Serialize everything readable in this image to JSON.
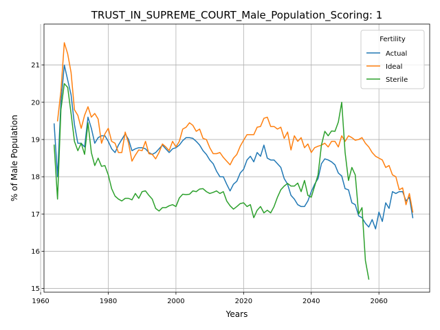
{
  "chart_data": {
    "type": "line",
    "title": "TRUST_IN_SUPREME_COURT_Male_Population_Scoring: 1",
    "xlabel": "Years",
    "ylabel": "% of Male Population",
    "xlim": [
      1961,
      2075
    ],
    "ylim": [
      14.9,
      22.1
    ],
    "xticks": [
      1960,
      1980,
      2000,
      2020,
      2040,
      2060
    ],
    "yticks": [
      15,
      16,
      17,
      18,
      19,
      20,
      21
    ],
    "grid": true,
    "legend": {
      "title": "Fertility",
      "placement": "top-right"
    },
    "series": [
      {
        "name": "Actual",
        "color": "#1f77b4",
        "points": [
          [
            1964,
            19.42
          ],
          [
            1965,
            18.0
          ],
          [
            1966,
            20.0
          ],
          [
            1967,
            21.0
          ],
          [
            1968,
            20.6
          ],
          [
            1969,
            20.2
          ],
          [
            1970,
            19.4
          ],
          [
            1971,
            18.9
          ],
          [
            1972,
            18.9
          ],
          [
            1973,
            18.8
          ],
          [
            1974,
            19.6
          ],
          [
            1975,
            19.3
          ],
          [
            1976,
            18.9
          ],
          [
            1977,
            19.05
          ],
          [
            1978,
            19.1
          ],
          [
            1979,
            19.1
          ],
          [
            1980,
            18.95
          ],
          [
            1981,
            18.75
          ],
          [
            1982,
            18.65
          ],
          [
            1983,
            18.85
          ],
          [
            1984,
            19.0
          ],
          [
            1985,
            19.15
          ],
          [
            1986,
            19.0
          ],
          [
            1987,
            18.7
          ],
          [
            1988,
            18.75
          ],
          [
            1989,
            18.78
          ],
          [
            1990,
            18.78
          ],
          [
            1991,
            18.75
          ],
          [
            1992,
            18.65
          ],
          [
            1993,
            18.6
          ],
          [
            1994,
            18.65
          ],
          [
            1995,
            18.75
          ],
          [
            1996,
            18.85
          ],
          [
            1997,
            18.75
          ],
          [
            1998,
            18.65
          ],
          [
            1999,
            18.75
          ],
          [
            2000,
            18.78
          ],
          [
            2001,
            18.85
          ],
          [
            2002,
            18.97
          ],
          [
            2003,
            19.05
          ],
          [
            2004,
            19.05
          ],
          [
            2005,
            19.03
          ],
          [
            2006,
            18.95
          ],
          [
            2007,
            18.85
          ],
          [
            2008,
            18.7
          ],
          [
            2009,
            18.6
          ],
          [
            2010,
            18.45
          ],
          [
            2011,
            18.35
          ],
          [
            2012,
            18.15
          ],
          [
            2013,
            18.0
          ],
          [
            2014,
            18.0
          ],
          [
            2015,
            17.8
          ],
          [
            2016,
            17.62
          ],
          [
            2017,
            17.8
          ],
          [
            2018,
            17.88
          ],
          [
            2019,
            18.1
          ],
          [
            2020,
            18.2
          ],
          [
            2021,
            18.45
          ],
          [
            2022,
            18.55
          ],
          [
            2023,
            18.4
          ],
          [
            2024,
            18.65
          ],
          [
            2025,
            18.55
          ],
          [
            2026,
            18.85
          ],
          [
            2027,
            18.5
          ],
          [
            2028,
            18.45
          ],
          [
            2029,
            18.45
          ],
          [
            2030,
            18.35
          ],
          [
            2031,
            18.25
          ],
          [
            2032,
            17.95
          ],
          [
            2033,
            17.8
          ],
          [
            2034,
            17.5
          ],
          [
            2035,
            17.4
          ],
          [
            2036,
            17.25
          ],
          [
            2037,
            17.2
          ],
          [
            2038,
            17.2
          ],
          [
            2039,
            17.35
          ],
          [
            2040,
            17.6
          ],
          [
            2041,
            17.8
          ],
          [
            2042,
            17.95
          ],
          [
            2043,
            18.35
          ],
          [
            2044,
            18.48
          ],
          [
            2045,
            18.45
          ],
          [
            2046,
            18.4
          ],
          [
            2047,
            18.32
          ],
          [
            2048,
            18.1
          ],
          [
            2049,
            18.02
          ],
          [
            2050,
            17.68
          ],
          [
            2051,
            17.65
          ],
          [
            2052,
            17.3
          ],
          [
            2053,
            17.25
          ],
          [
            2054,
            16.95
          ],
          [
            2055,
            16.9
          ],
          [
            2056,
            16.75
          ],
          [
            2057,
            16.65
          ],
          [
            2058,
            16.85
          ],
          [
            2059,
            16.6
          ],
          [
            2060,
            17.05
          ],
          [
            2061,
            16.8
          ],
          [
            2062,
            17.3
          ],
          [
            2063,
            17.15
          ],
          [
            2064,
            17.6
          ],
          [
            2065,
            17.55
          ],
          [
            2066,
            17.6
          ],
          [
            2067,
            17.6
          ],
          [
            2068,
            17.35
          ],
          [
            2069,
            17.45
          ],
          [
            2070,
            16.9
          ]
        ]
      },
      {
        "name": "Ideal",
        "color": "#ff7f0e",
        "points": [
          [
            1965,
            19.5
          ],
          [
            1966,
            20.3
          ],
          [
            1967,
            21.6
          ],
          [
            1968,
            21.3
          ],
          [
            1969,
            20.8
          ],
          [
            1970,
            19.8
          ],
          [
            1971,
            19.65
          ],
          [
            1972,
            19.3
          ],
          [
            1973,
            19.65
          ],
          [
            1974,
            19.88
          ],
          [
            1975,
            19.6
          ],
          [
            1976,
            19.7
          ],
          [
            1977,
            19.55
          ],
          [
            1978,
            18.9
          ],
          [
            1979,
            19.15
          ],
          [
            1980,
            19.3
          ],
          [
            1981,
            18.95
          ],
          [
            1982,
            18.9
          ],
          [
            1983,
            18.65
          ],
          [
            1984,
            18.65
          ],
          [
            1985,
            19.2
          ],
          [
            1986,
            18.9
          ],
          [
            1987,
            18.42
          ],
          [
            1988,
            18.58
          ],
          [
            1989,
            18.72
          ],
          [
            1990,
            18.7
          ],
          [
            1991,
            18.95
          ],
          [
            1992,
            18.62
          ],
          [
            1993,
            18.6
          ],
          [
            1994,
            18.48
          ],
          [
            1995,
            18.65
          ],
          [
            1996,
            18.88
          ],
          [
            1997,
            18.8
          ],
          [
            1998,
            18.7
          ],
          [
            1999,
            18.95
          ],
          [
            2000,
            18.8
          ],
          [
            2001,
            18.95
          ],
          [
            2002,
            19.28
          ],
          [
            2003,
            19.33
          ],
          [
            2004,
            19.45
          ],
          [
            2005,
            19.38
          ],
          [
            2006,
            19.22
          ],
          [
            2007,
            19.28
          ],
          [
            2008,
            19.03
          ],
          [
            2009,
            19.0
          ],
          [
            2010,
            18.78
          ],
          [
            2011,
            18.62
          ],
          [
            2012,
            18.62
          ],
          [
            2013,
            18.65
          ],
          [
            2014,
            18.52
          ],
          [
            2015,
            18.42
          ],
          [
            2016,
            18.32
          ],
          [
            2017,
            18.5
          ],
          [
            2018,
            18.6
          ],
          [
            2019,
            18.82
          ],
          [
            2020,
            18.98
          ],
          [
            2021,
            19.13
          ],
          [
            2022,
            19.13
          ],
          [
            2023,
            19.13
          ],
          [
            2024,
            19.33
          ],
          [
            2025,
            19.35
          ],
          [
            2026,
            19.57
          ],
          [
            2027,
            19.6
          ],
          [
            2028,
            19.35
          ],
          [
            2029,
            19.35
          ],
          [
            2030,
            19.28
          ],
          [
            2031,
            19.33
          ],
          [
            2032,
            19.03
          ],
          [
            2033,
            19.2
          ],
          [
            2034,
            18.72
          ],
          [
            2035,
            19.1
          ],
          [
            2036,
            18.95
          ],
          [
            2037,
            19.05
          ],
          [
            2038,
            18.78
          ],
          [
            2039,
            18.88
          ],
          [
            2040,
            18.65
          ],
          [
            2041,
            18.78
          ],
          [
            2042,
            18.82
          ],
          [
            2043,
            18.85
          ],
          [
            2044,
            18.9
          ],
          [
            2045,
            18.8
          ],
          [
            2046,
            18.95
          ],
          [
            2047,
            18.95
          ],
          [
            2048,
            18.8
          ],
          [
            2049,
            19.1
          ],
          [
            2050,
            18.95
          ],
          [
            2051,
            19.1
          ],
          [
            2052,
            19.05
          ],
          [
            2053,
            18.98
          ],
          [
            2054,
            19.0
          ],
          [
            2055,
            19.05
          ],
          [
            2056,
            18.9
          ],
          [
            2057,
            18.8
          ],
          [
            2058,
            18.65
          ],
          [
            2059,
            18.55
          ],
          [
            2060,
            18.5
          ],
          [
            2061,
            18.45
          ],
          [
            2062,
            18.25
          ],
          [
            2063,
            18.3
          ],
          [
            2064,
            18.05
          ],
          [
            2065,
            18.0
          ],
          [
            2066,
            17.65
          ],
          [
            2067,
            17.7
          ],
          [
            2068,
            17.25
          ],
          [
            2069,
            17.55
          ],
          [
            2070,
            17.05
          ]
        ]
      },
      {
        "name": "Sterile",
        "color": "#2ca02c",
        "points": [
          [
            1964,
            18.85
          ],
          [
            1965,
            17.4
          ],
          [
            1966,
            19.8
          ],
          [
            1967,
            20.5
          ],
          [
            1968,
            20.4
          ],
          [
            1969,
            19.7
          ],
          [
            1970,
            18.95
          ],
          [
            1971,
            18.7
          ],
          [
            1972,
            18.9
          ],
          [
            1973,
            18.6
          ],
          [
            1974,
            19.45
          ],
          [
            1975,
            18.65
          ],
          [
            1976,
            18.3
          ],
          [
            1977,
            18.5
          ],
          [
            1978,
            18.28
          ],
          [
            1979,
            18.3
          ],
          [
            1980,
            18.05
          ],
          [
            1981,
            17.68
          ],
          [
            1982,
            17.48
          ],
          [
            1983,
            17.4
          ],
          [
            1984,
            17.35
          ],
          [
            1985,
            17.42
          ],
          [
            1986,
            17.42
          ],
          [
            1987,
            17.38
          ],
          [
            1988,
            17.55
          ],
          [
            1989,
            17.42
          ],
          [
            1990,
            17.6
          ],
          [
            1991,
            17.62
          ],
          [
            1992,
            17.5
          ],
          [
            1993,
            17.4
          ],
          [
            1994,
            17.15
          ],
          [
            1995,
            17.08
          ],
          [
            1996,
            17.17
          ],
          [
            1997,
            17.17
          ],
          [
            1998,
            17.22
          ],
          [
            1999,
            17.25
          ],
          [
            2000,
            17.2
          ],
          [
            2001,
            17.43
          ],
          [
            2002,
            17.53
          ],
          [
            2003,
            17.52
          ],
          [
            2004,
            17.53
          ],
          [
            2005,
            17.62
          ],
          [
            2006,
            17.6
          ],
          [
            2007,
            17.67
          ],
          [
            2008,
            17.68
          ],
          [
            2009,
            17.6
          ],
          [
            2010,
            17.55
          ],
          [
            2011,
            17.58
          ],
          [
            2012,
            17.62
          ],
          [
            2013,
            17.55
          ],
          [
            2014,
            17.6
          ],
          [
            2015,
            17.35
          ],
          [
            2016,
            17.22
          ],
          [
            2017,
            17.13
          ],
          [
            2018,
            17.2
          ],
          [
            2019,
            17.28
          ],
          [
            2020,
            17.3
          ],
          [
            2021,
            17.2
          ],
          [
            2022,
            17.25
          ],
          [
            2023,
            16.9
          ],
          [
            2024,
            17.1
          ],
          [
            2025,
            17.2
          ],
          [
            2026,
            17.03
          ],
          [
            2027,
            17.1
          ],
          [
            2028,
            17.03
          ],
          [
            2029,
            17.2
          ],
          [
            2030,
            17.45
          ],
          [
            2031,
            17.65
          ],
          [
            2032,
            17.75
          ],
          [
            2033,
            17.82
          ],
          [
            2034,
            17.75
          ],
          [
            2035,
            17.75
          ],
          [
            2036,
            17.83
          ],
          [
            2037,
            17.6
          ],
          [
            2038,
            17.9
          ],
          [
            2039,
            17.5
          ],
          [
            2040,
            17.45
          ],
          [
            2041,
            17.75
          ],
          [
            2042,
            18.05
          ],
          [
            2043,
            18.85
          ],
          [
            2044,
            19.22
          ],
          [
            2045,
            19.1
          ],
          [
            2046,
            19.23
          ],
          [
            2047,
            19.22
          ],
          [
            2048,
            19.47
          ],
          [
            2049,
            20.0
          ],
          [
            2050,
            18.65
          ],
          [
            2051,
            17.9
          ],
          [
            2052,
            18.25
          ],
          [
            2053,
            18.05
          ],
          [
            2054,
            17.0
          ],
          [
            2055,
            17.17
          ],
          [
            2056,
            15.75
          ],
          [
            2057,
            15.25
          ]
        ]
      }
    ]
  }
}
